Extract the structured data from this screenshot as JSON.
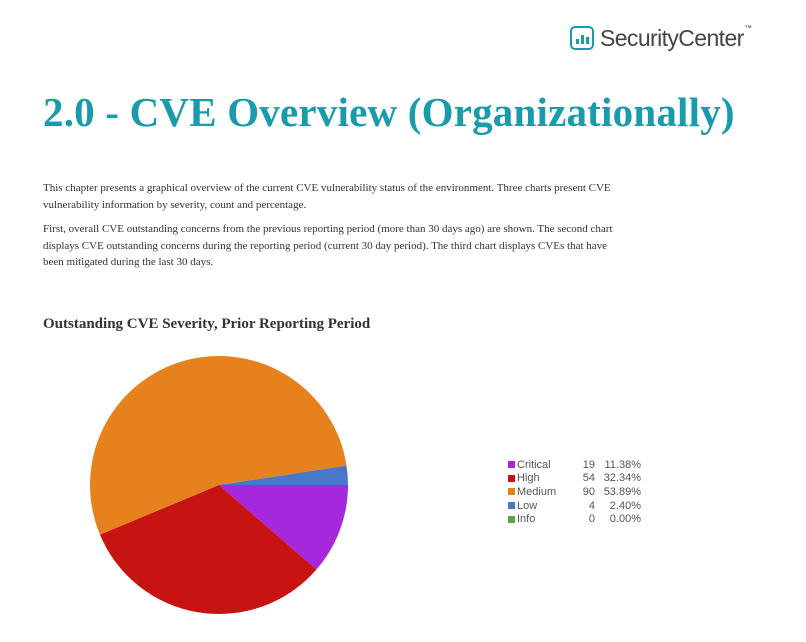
{
  "logo": {
    "text": "SecurityCenter",
    "mark": "trademark"
  },
  "page": {
    "title": "2.0 - CVE Overview (Organizationally)",
    "paragraph1": "This chapter presents a graphical overview of the current CVE vulnerability status of the environment. Three charts present CVE vulnerability information by severity, count and percentage.",
    "paragraph2": "First, overall CVE outstanding concerns from the previous reporting period (more than 30 days ago) are shown. The second chart displays CVE outstanding concerns during the reporting period (current 30 day period). The third chart displays CVEs that have been mitigated during the last 30 days."
  },
  "chart_data": {
    "type": "pie",
    "title": "Outstanding CVE Severity, Prior Reporting Period",
    "legend_position": "right",
    "categories": [
      "Critical",
      "High",
      "Medium",
      "Low",
      "Info"
    ],
    "values": [
      19,
      54,
      90,
      4,
      0
    ],
    "percentages": [
      "11.38%",
      "32.34%",
      "53.89%",
      "2.40%",
      "0.00%"
    ],
    "colors": [
      "#a628dc",
      "#c81313",
      "#e5821d",
      "#4a78c9",
      "#58a64a"
    ],
    "legend": [
      {
        "label": "Critical",
        "count": "19",
        "pct": "11.38%",
        "color": "#a628dc"
      },
      {
        "label": "High",
        "count": "54",
        "pct": "32.34%",
        "color": "#c81313"
      },
      {
        "label": "Medium",
        "count": "90",
        "pct": "53.89%",
        "color": "#e5821d"
      },
      {
        "label": "Low",
        "count": "4",
        "pct": "2.40%",
        "color": "#4a78c9"
      },
      {
        "label": "Info",
        "count": "0",
        "pct": "0.00%",
        "color": "#58a64a"
      }
    ]
  }
}
